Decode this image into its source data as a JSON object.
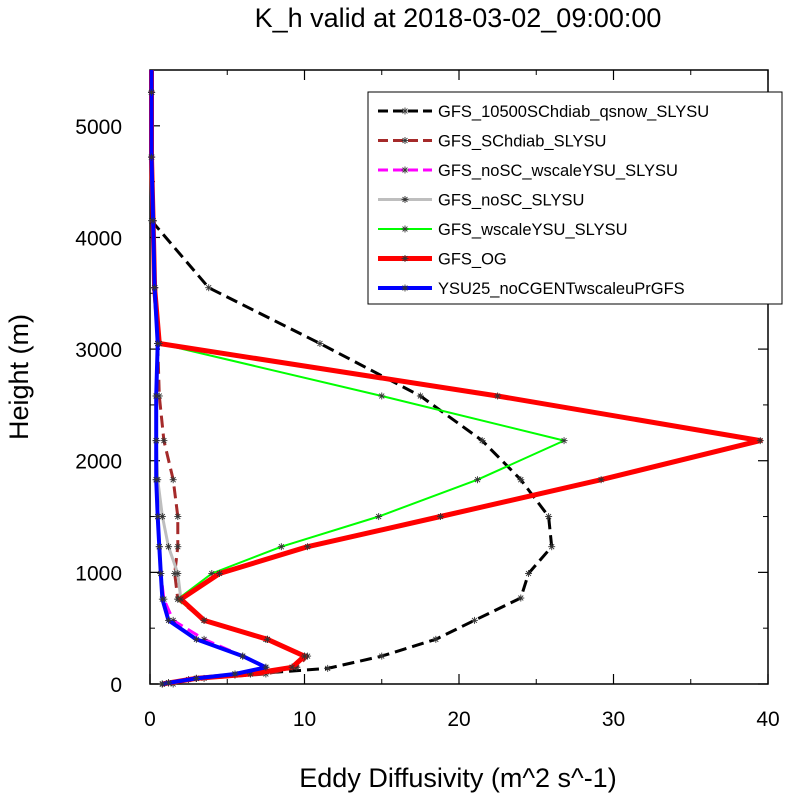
{
  "chart_data": {
    "type": "line",
    "title": "K_h valid at 2018-03-02_09:00:00",
    "xlabel": "Eddy Diffusivity (m^2 s^-1)",
    "ylabel": "Height (m)",
    "xlim": [
      0,
      40
    ],
    "ylim": [
      0,
      5500
    ],
    "x_ticks": [
      0,
      10,
      20,
      30,
      40
    ],
    "y_ticks": [
      0,
      1000,
      2000,
      3000,
      4000,
      5000
    ],
    "x_tick_labels": [
      "0",
      "10",
      "20",
      "30",
      "40"
    ],
    "y_tick_labels": [
      "0",
      "1000",
      "2000",
      "3000",
      "4000",
      "5000"
    ],
    "legend_position": "top-right",
    "marker": "asterisk",
    "series": [
      {
        "name": "GFS_10500SChdiab_qsnow_SLYSU",
        "color": "#000000",
        "dash": "dashed",
        "width": 3,
        "points": [
          [
            1.5,
            0
          ],
          [
            1.2,
            10
          ],
          [
            2.5,
            40
          ],
          [
            5.5,
            80
          ],
          [
            11.5,
            140
          ],
          [
            15,
            250
          ],
          [
            18.5,
            400
          ],
          [
            21,
            570
          ],
          [
            24,
            770
          ],
          [
            24.5,
            990
          ],
          [
            26,
            1230
          ],
          [
            25.8,
            1500
          ],
          [
            24,
            1830
          ],
          [
            21.5,
            2180
          ],
          [
            17.5,
            2580
          ],
          [
            11,
            3050
          ],
          [
            3.8,
            3550
          ],
          [
            0.1,
            4150
          ],
          [
            0.1,
            4720
          ],
          [
            0.1,
            5300
          ],
          [
            0.1,
            5500
          ]
        ]
      },
      {
        "name": "GFS_SChdiab_SLYSU",
        "color": "#a52a2a",
        "dash": "dashed",
        "width": 3,
        "points": [
          [
            0.8,
            0
          ],
          [
            1.2,
            10
          ],
          [
            3.5,
            50
          ],
          [
            7.5,
            90
          ],
          [
            9.5,
            150
          ],
          [
            10.2,
            250
          ],
          [
            7.5,
            400
          ],
          [
            3.5,
            570
          ],
          [
            1.8,
            760
          ],
          [
            1.6,
            990
          ],
          [
            1.8,
            1230
          ],
          [
            1.8,
            1500
          ],
          [
            1.5,
            1830
          ],
          [
            0.9,
            2180
          ],
          [
            0.6,
            2580
          ],
          [
            0.5,
            3050
          ],
          [
            0.3,
            3550
          ],
          [
            0.2,
            4150
          ],
          [
            0.1,
            4720
          ],
          [
            0.1,
            5300
          ],
          [
            0.1,
            5500
          ]
        ]
      },
      {
        "name": "GFS_noSC_wscaleYSU_SLYSU",
        "color": "#ff00ff",
        "dash": "dashed",
        "width": 3,
        "points": [
          [
            0.8,
            0
          ],
          [
            1.2,
            10
          ],
          [
            3,
            50
          ],
          [
            5.5,
            90
          ],
          [
            7.5,
            150
          ],
          [
            6,
            250
          ],
          [
            3.5,
            400
          ],
          [
            1.5,
            570
          ],
          [
            0.9,
            760
          ],
          [
            0.7,
            990
          ],
          [
            0.6,
            1230
          ],
          [
            0.5,
            1500
          ],
          [
            0.4,
            1830
          ],
          [
            0.4,
            2180
          ],
          [
            0.4,
            2580
          ],
          [
            0.5,
            3050
          ],
          [
            0.3,
            3550
          ],
          [
            0.2,
            4150
          ],
          [
            0.1,
            4720
          ],
          [
            0.1,
            5300
          ],
          [
            0.1,
            5500
          ]
        ]
      },
      {
        "name": "GFS_noSC_SLYSU",
        "color": "#bebebe",
        "dash": "solid",
        "width": 3,
        "points": [
          [
            0.8,
            0
          ],
          [
            1.2,
            10
          ],
          [
            3,
            50
          ],
          [
            6.5,
            90
          ],
          [
            9.2,
            150
          ],
          [
            10,
            250
          ],
          [
            7.6,
            400
          ],
          [
            3.5,
            570
          ],
          [
            2,
            760
          ],
          [
            1.8,
            990
          ],
          [
            1.2,
            1230
          ],
          [
            0.8,
            1500
          ],
          [
            0.5,
            1830
          ],
          [
            0.4,
            2180
          ],
          [
            0.4,
            2580
          ],
          [
            0.5,
            3050
          ],
          [
            0.3,
            3550
          ],
          [
            0.2,
            4150
          ],
          [
            0.1,
            4720
          ],
          [
            0.1,
            5300
          ],
          [
            0.1,
            5500
          ]
        ]
      },
      {
        "name": "GFS_wscaleYSU_SLYSU",
        "color": "#00ff00",
        "dash": "solid",
        "width": 2,
        "points": [
          [
            0.8,
            0
          ],
          [
            1.2,
            10
          ],
          [
            3,
            50
          ],
          [
            6.5,
            90
          ],
          [
            9.2,
            150
          ],
          [
            10,
            250
          ],
          [
            7.6,
            400
          ],
          [
            3.5,
            570
          ],
          [
            1.8,
            760
          ],
          [
            4,
            990
          ],
          [
            8.5,
            1230
          ],
          [
            14.8,
            1500
          ],
          [
            21.2,
            1830
          ],
          [
            26.8,
            2180
          ],
          [
            15,
            2580
          ],
          [
            0.6,
            3050
          ],
          [
            0.3,
            3550
          ],
          [
            0.2,
            4150
          ],
          [
            0.1,
            4720
          ],
          [
            0.1,
            5300
          ],
          [
            0.1,
            5500
          ]
        ]
      },
      {
        "name": "GFS_OG",
        "color": "#ff0000",
        "dash": "solid",
        "width": 5,
        "points": [
          [
            0.8,
            0
          ],
          [
            1.2,
            10
          ],
          [
            3,
            50
          ],
          [
            6.5,
            90
          ],
          [
            9.2,
            150
          ],
          [
            10,
            250
          ],
          [
            7.6,
            400
          ],
          [
            3.5,
            570
          ],
          [
            2,
            760
          ],
          [
            4.5,
            990
          ],
          [
            10.2,
            1230
          ],
          [
            18.8,
            1500
          ],
          [
            29.2,
            1830
          ],
          [
            39.5,
            2180
          ],
          [
            22.5,
            2580
          ],
          [
            0.6,
            3050
          ],
          [
            0.3,
            3550
          ],
          [
            0.2,
            4150
          ],
          [
            0.1,
            4720
          ],
          [
            0.1,
            5300
          ],
          [
            0.1,
            5500
          ]
        ]
      },
      {
        "name": "YSU25_noCGENTwscaleuPrGFS",
        "color": "#0000ff",
        "dash": "solid",
        "width": 4,
        "points": [
          [
            0.8,
            0
          ],
          [
            1.2,
            10
          ],
          [
            3,
            50
          ],
          [
            5.5,
            90
          ],
          [
            7.5,
            150
          ],
          [
            6,
            250
          ],
          [
            3,
            400
          ],
          [
            1.2,
            570
          ],
          [
            0.8,
            760
          ],
          [
            0.7,
            990
          ],
          [
            0.6,
            1230
          ],
          [
            0.5,
            1500
          ],
          [
            0.4,
            1830
          ],
          [
            0.4,
            2180
          ],
          [
            0.4,
            2580
          ],
          [
            0.5,
            3050
          ],
          [
            0.3,
            3550
          ],
          [
            0.2,
            4150
          ],
          [
            0.1,
            4720
          ],
          [
            0.1,
            5300
          ],
          [
            0.1,
            5500
          ]
        ]
      }
    ]
  }
}
